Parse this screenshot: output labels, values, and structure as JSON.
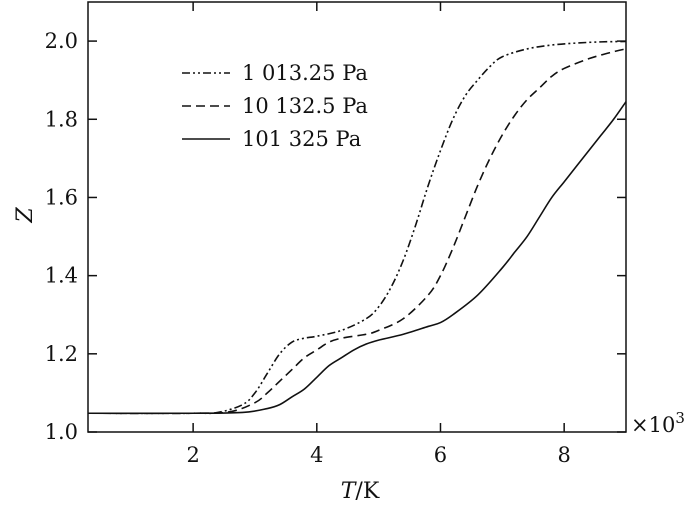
{
  "chart_data": {
    "type": "line",
    "xlabel_italic": "T",
    "xlabel_unit": "/K",
    "ylabel": "Z",
    "x_multiplier_prefix": "×10",
    "x_multiplier_exp": "3",
    "xlim": [
      0.3,
      9.0
    ],
    "ylim": [
      1.0,
      2.1
    ],
    "xticks": [
      2,
      4,
      6,
      8
    ],
    "yticks": [
      1.0,
      1.2,
      1.4,
      1.6,
      1.8,
      2.0
    ],
    "ytick_labels": [
      "1.0",
      "1.2",
      "1.4",
      "1.6",
      "1.8",
      "2.0"
    ],
    "grid": false,
    "legend_position": "top-left",
    "series": [
      {
        "name": "1 013.25 Pa",
        "style": "dashdotdot",
        "x": [
          0.3,
          2.0,
          2.4,
          2.8,
          3.0,
          3.2,
          3.4,
          3.6,
          3.8,
          4.0,
          4.4,
          4.8,
          5.0,
          5.2,
          5.4,
          5.6,
          5.8,
          6.0,
          6.2,
          6.4,
          6.6,
          6.8,
          7.0,
          7.4,
          7.8,
          8.2,
          8.6,
          9.0
        ],
        "y": [
          1.048,
          1.048,
          1.05,
          1.07,
          1.1,
          1.15,
          1.2,
          1.23,
          1.24,
          1.245,
          1.26,
          1.29,
          1.32,
          1.37,
          1.44,
          1.53,
          1.63,
          1.72,
          1.8,
          1.86,
          1.9,
          1.935,
          1.96,
          1.98,
          1.99,
          1.995,
          1.998,
          1.999
        ]
      },
      {
        "name": "10 132.5 Pa",
        "style": "dashed",
        "x": [
          0.3,
          2.0,
          2.6,
          3.0,
          3.2,
          3.4,
          3.6,
          3.8,
          4.0,
          4.2,
          4.4,
          4.8,
          5.0,
          5.4,
          5.8,
          6.0,
          6.2,
          6.4,
          6.6,
          6.8,
          7.0,
          7.2,
          7.4,
          7.6,
          7.8,
          8.0,
          8.4,
          8.8,
          9.0
        ],
        "y": [
          1.048,
          1.048,
          1.052,
          1.075,
          1.1,
          1.13,
          1.16,
          1.19,
          1.21,
          1.23,
          1.24,
          1.25,
          1.26,
          1.29,
          1.35,
          1.4,
          1.47,
          1.55,
          1.63,
          1.7,
          1.76,
          1.81,
          1.85,
          1.88,
          1.91,
          1.93,
          1.955,
          1.973,
          1.98
        ]
      },
      {
        "name": "101 325 Pa",
        "style": "solid",
        "x": [
          0.3,
          2.0,
          2.8,
          3.2,
          3.4,
          3.6,
          3.8,
          4.0,
          4.2,
          4.4,
          4.6,
          4.8,
          5.0,
          5.4,
          5.8,
          6.0,
          6.2,
          6.6,
          7.0,
          7.2,
          7.4,
          7.6,
          7.8,
          8.0,
          8.2,
          8.4,
          8.6,
          8.8,
          9.0
        ],
        "y": [
          1.048,
          1.048,
          1.05,
          1.06,
          1.07,
          1.09,
          1.11,
          1.14,
          1.17,
          1.19,
          1.21,
          1.225,
          1.235,
          1.25,
          1.27,
          1.28,
          1.3,
          1.35,
          1.42,
          1.46,
          1.5,
          1.55,
          1.6,
          1.64,
          1.68,
          1.72,
          1.76,
          1.8,
          1.845
        ]
      }
    ]
  }
}
